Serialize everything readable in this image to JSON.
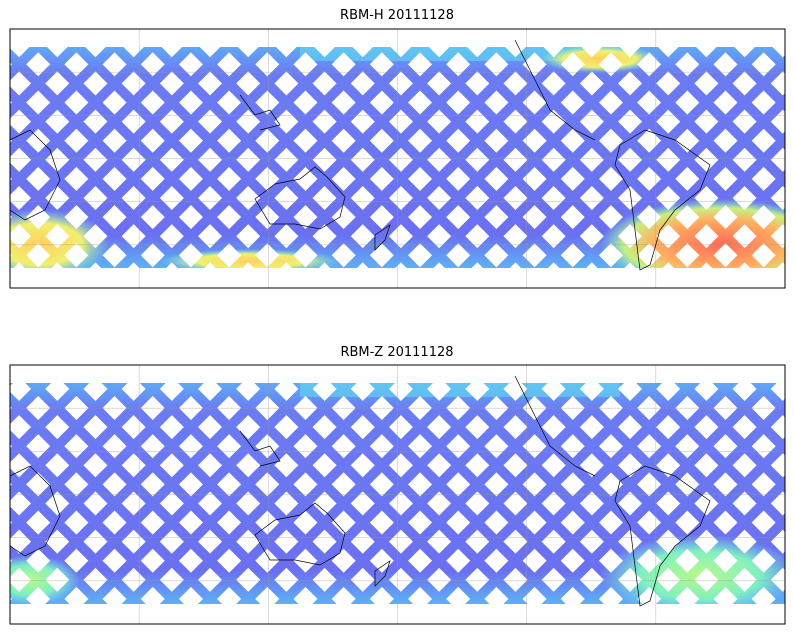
{
  "panels": [
    {
      "title": "RBM-H 20111128"
    },
    {
      "title": "RBM-Z 20111128"
    }
  ]
}
